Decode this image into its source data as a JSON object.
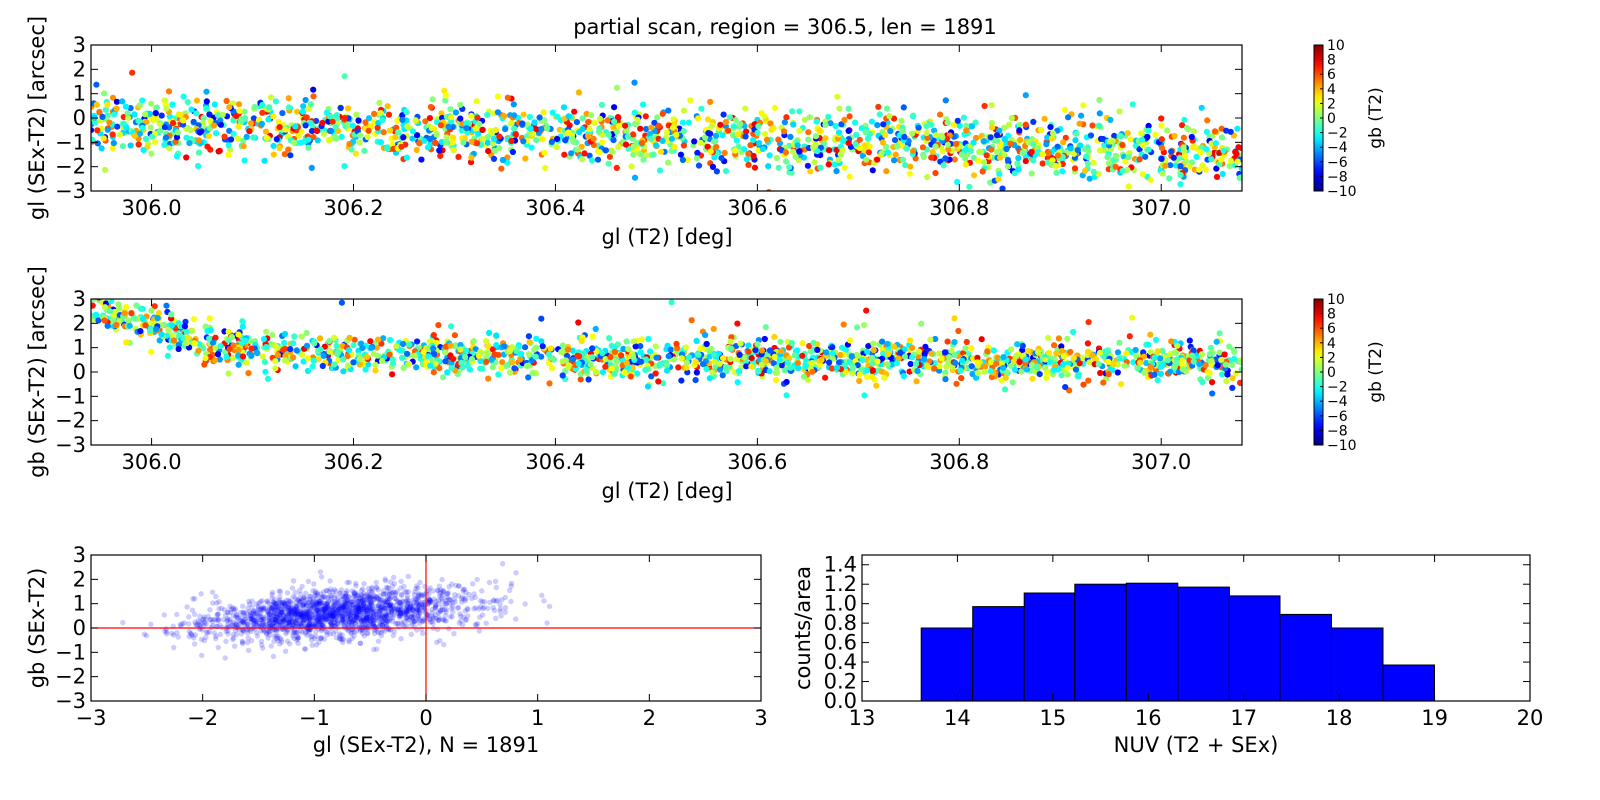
{
  "figure": {
    "title": "partial scan, region = 306.5, len = 1891"
  },
  "chart_data": [
    {
      "id": "gl-offset-vs-gl",
      "type": "scatter",
      "title": "partial scan, region = 306.5, len = 1891",
      "xlabel": "gl (T2) [deg]",
      "ylabel": "gl (SEx-T2) [arcsec]",
      "xlim": [
        305.94,
        307.08
      ],
      "ylim": [
        -3,
        3
      ],
      "xticks": [
        "306.0",
        "306.2",
        "306.4",
        "306.6",
        "306.8",
        "307.0"
      ],
      "xtick_values": [
        306.0,
        306.2,
        306.4,
        306.6,
        306.8,
        307.0
      ],
      "yticks": [
        "−3",
        "−2",
        "−1",
        "0",
        "1",
        "2",
        "3"
      ],
      "ytick_values": [
        -3,
        -2,
        -1,
        0,
        1,
        2,
        3
      ],
      "n_points": 1891,
      "trend": [
        [
          305.94,
          -0.3
        ],
        [
          306.2,
          -0.45
        ],
        [
          306.5,
          -0.8
        ],
        [
          306.8,
          -1.15
        ],
        [
          307.08,
          -1.45
        ]
      ],
      "scatter_sigma": 0.6,
      "color_by": "gb (T2)",
      "colorbar": {
        "label": "gb (T2)",
        "range": [
          -10,
          10
        ],
        "ticks": [
          "10",
          "8",
          "6",
          "4",
          "2",
          "0",
          "−2",
          "−4",
          "−6",
          "−8",
          "−10"
        ],
        "colormap": "jet"
      },
      "grid": false
    },
    {
      "id": "gb-offset-vs-gl",
      "type": "scatter",
      "xlabel": "gl (T2) [deg]",
      "ylabel": "gb (SEx-T2) [arcsec]",
      "xlim": [
        305.94,
        307.08
      ],
      "ylim": [
        -3,
        3
      ],
      "xticks": [
        "306.0",
        "306.2",
        "306.4",
        "306.6",
        "306.8",
        "307.0"
      ],
      "xtick_values": [
        306.0,
        306.2,
        306.4,
        306.6,
        306.8,
        307.0
      ],
      "yticks": [
        "−3",
        "−2",
        "−1",
        "0",
        "1",
        "2",
        "3"
      ],
      "ytick_values": [
        -3,
        -2,
        -1,
        0,
        1,
        2,
        3
      ],
      "n_points": 1891,
      "trend": [
        [
          305.94,
          2.6
        ],
        [
          306.0,
          2.0
        ],
        [
          306.05,
          1.1
        ],
        [
          306.2,
          0.75
        ],
        [
          306.5,
          0.55
        ],
        [
          306.8,
          0.45
        ],
        [
          307.08,
          0.4
        ]
      ],
      "scatter_sigma": 0.38,
      "color_by": "gb (T2)",
      "colorbar": {
        "label": "gb (T2)",
        "range": [
          -10,
          10
        ],
        "ticks": [
          "10",
          "8",
          "6",
          "4",
          "2",
          "0",
          "−2",
          "−4",
          "−6",
          "−8",
          "−10"
        ],
        "colormap": "jet"
      },
      "grid": false
    },
    {
      "id": "gb-vs-gl-offset",
      "type": "scatter",
      "xlabel": "gl (SEx-T2), N = 1891",
      "ylabel": "gb (SEx-T2)",
      "xlim": [
        -3,
        3
      ],
      "ylim": [
        -3,
        3
      ],
      "xticks": [
        "−3",
        "−2",
        "−1",
        "0",
        "1",
        "2",
        "3"
      ],
      "xtick_values": [
        -3,
        -2,
        -1,
        0,
        1,
        2,
        3
      ],
      "yticks": [
        "−3",
        "−2",
        "−1",
        "0",
        "1",
        "2",
        "3"
      ],
      "ytick_values": [
        -3,
        -2,
        -1,
        0,
        1,
        2,
        3
      ],
      "n_points": 1891,
      "center": [
        -0.8,
        0.6
      ],
      "point_color": "#0000ff",
      "point_alpha": 0.2,
      "reference_lines": {
        "x": 0,
        "y": 0,
        "color": "#ff0000"
      },
      "grid": false
    },
    {
      "id": "nuv-histogram",
      "type": "bar",
      "xlabel": "NUV (T2 + SEx)",
      "ylabel": "counts/area",
      "xlim": [
        13,
        20
      ],
      "ylim": [
        0,
        1.5
      ],
      "xticks": [
        "13",
        "14",
        "15",
        "16",
        "17",
        "18",
        "19",
        "20"
      ],
      "xtick_values": [
        13,
        14,
        15,
        16,
        17,
        18,
        19,
        20
      ],
      "yticks": [
        "0.0",
        "0.2",
        "0.4",
        "0.6",
        "0.8",
        "1.0",
        "1.2",
        "1.4"
      ],
      "ytick_values": [
        0.0,
        0.2,
        0.4,
        0.6,
        0.8,
        1.0,
        1.2,
        1.4
      ],
      "bin_edges": [
        13.62,
        14.16,
        14.7,
        15.23,
        15.77,
        16.31,
        16.85,
        17.38,
        17.92,
        18.46,
        19.0
      ],
      "values": [
        0.75,
        0.97,
        1.11,
        1.2,
        1.21,
        1.17,
        1.08,
        0.89,
        0.75,
        0.37
      ],
      "bar_color": "#0000ff",
      "grid": false
    }
  ]
}
